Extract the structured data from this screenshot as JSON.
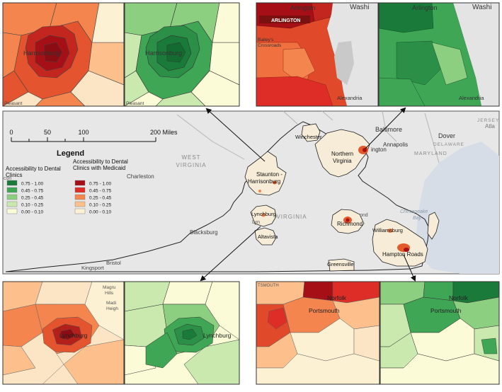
{
  "scale_bar": {
    "ticks": [
      "0",
      "50",
      "100",
      "200 Miles"
    ]
  },
  "legend": {
    "title": "Legend",
    "general": {
      "title_line1": "Accessibility to Dental",
      "title_line2": "Clinics",
      "classes": [
        {
          "label": "0.75 - 1.00",
          "color": "#1a7a3a"
        },
        {
          "label": "0.45 - 0.75",
          "color": "#3fa656"
        },
        {
          "label": "0.25 - 0.45",
          "color": "#8dcf80"
        },
        {
          "label": "0.10 - 0.25",
          "color": "#c9e9ae"
        },
        {
          "label": "0.00 - 0.10",
          "color": "#fbfbd8"
        }
      ]
    },
    "medicaid": {
      "title_line1": "Accessibility to Dental",
      "title_line2": "Clinics with Medicaid",
      "classes": [
        {
          "label": "0.75 - 1.00",
          "color": "#a50f15"
        },
        {
          "label": "0.45 - 0.75",
          "color": "#de2d26"
        },
        {
          "label": "0.25 - 0.45",
          "color": "#f4854f"
        },
        {
          "label": "0.10 - 0.25",
          "color": "#fdc08d"
        },
        {
          "label": "0.00 - 0.10",
          "color": "#fdf1d3"
        }
      ]
    }
  },
  "regions": {
    "staunton_line1": "Staunton -",
    "staunton_line2": "Harrisonburg",
    "nova_line1": "Northern",
    "nova_line2": "Virginia",
    "winchester": "Winchester",
    "lynchburg": "Lynchburg",
    "altavista": "Altavista",
    "richmond": "Richmond",
    "williamsburg": "Williamsburg",
    "hampton_roads": "Hampton Roads",
    "greensville": "Greensville"
  },
  "basemap": {
    "west_virginia_line1": "WEST",
    "west_virginia_line2": "VIRGINIA",
    "virginia": "VIRGINIA",
    "maryland": "MARYLAND",
    "delaware": "DELAWARE",
    "jersey": "JERSEY",
    "charleston": "Charleston",
    "blacksburg": "Blacksburg",
    "bristol": "Bristol",
    "kingsport": "Kingsport",
    "baltimore": "Baltimore",
    "annapolis": "Annapolis",
    "dover": "Dover",
    "atlantic": "Atla",
    "chesapeake_line1": "Chesapeake",
    "chesapeake_line2": "Bay",
    "ington": "ington",
    "lyn": "Lyn",
    "ond": "ond"
  },
  "insets": {
    "harrisonburg": {
      "city": "Harrisonburg",
      "pleasant": "Pleasant"
    },
    "arlington": {
      "city": "Arlington",
      "badge": "ARLINGTON",
      "washi": "Washi",
      "bailey_line1": "Bailey's",
      "bailey_line2": "Crossroads",
      "alexandria": "Alexandria"
    },
    "lynchburg": {
      "city": "Lynchburg",
      "magru_line1": "Magru",
      "magru_line2": "Hills",
      "madi_line1": "Madi",
      "madi_line2": "Heigh"
    },
    "norfolk": {
      "norfolk": "Norfolk",
      "portsmouth": "Portsmouth",
      "tsmouth": "TSMOUTH"
    }
  }
}
